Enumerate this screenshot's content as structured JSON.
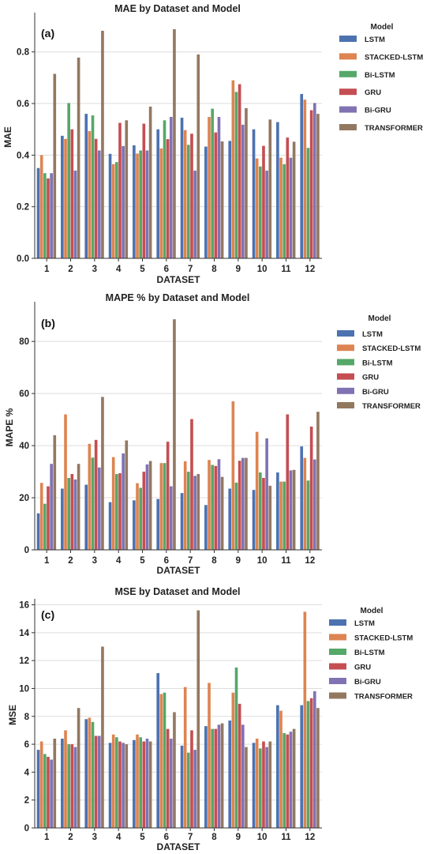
{
  "chart_data": [
    {
      "type": "bar",
      "title": "MAE by Dataset and Model",
      "panel_label": "(a)",
      "xlabel": "DATASET",
      "ylabel": "MAE",
      "ylim": [
        0,
        0.94
      ],
      "yticks": [
        0.0,
        0.2,
        0.4,
        0.6,
        0.8
      ],
      "ytick_labels": [
        "0.0",
        "0.2",
        "0.4",
        "0.6",
        "0.8"
      ],
      "grid": true,
      "legend": "right",
      "legend_title": "Model",
      "categories": [
        "1",
        "2",
        "3",
        "4",
        "5",
        "6",
        "7",
        "8",
        "9",
        "10",
        "11",
        "12"
      ],
      "series": [
        {
          "name": "LSTM",
          "color": "#4c72b0",
          "values": [
            0.35,
            0.475,
            0.56,
            0.405,
            0.438,
            0.5,
            0.545,
            0.433,
            0.455,
            0.5,
            0.528,
            0.637
          ]
        },
        {
          "name": "STACKED-LSTM",
          "color": "#dd8452",
          "values": [
            0.4,
            0.463,
            0.493,
            0.365,
            0.406,
            0.426,
            0.497,
            0.548,
            0.69,
            0.387,
            0.39,
            0.615
          ]
        },
        {
          "name": "Bi-LSTM",
          "color": "#55a868",
          "values": [
            0.33,
            0.602,
            0.554,
            0.373,
            0.418,
            0.535,
            0.44,
            0.58,
            0.645,
            0.356,
            0.365,
            0.428
          ]
        },
        {
          "name": "GRU",
          "color": "#c44e52",
          "values": [
            0.31,
            0.5,
            0.463,
            0.525,
            0.522,
            0.462,
            0.483,
            0.488,
            0.675,
            0.436,
            0.468,
            0.574
          ]
        },
        {
          "name": "Bi-GRU",
          "color": "#8172b3",
          "values": [
            0.33,
            0.34,
            0.418,
            0.435,
            0.418,
            0.548,
            0.34,
            0.548,
            0.518,
            0.34,
            0.39,
            0.602
          ]
        },
        {
          "name": "TRANSFORMER",
          "color": "#937860",
          "values": [
            0.715,
            0.778,
            0.882,
            0.535,
            0.588,
            0.888,
            0.79,
            0.453,
            0.582,
            0.538,
            0.452,
            0.56
          ]
        }
      ]
    },
    {
      "type": "bar",
      "title": "MAPE % by Dataset and Model",
      "panel_label": "(b)",
      "xlabel": "DATASET",
      "ylabel": "MAPE %",
      "ylim": [
        0,
        94
      ],
      "yticks": [
        0,
        20,
        40,
        60,
        80
      ],
      "ytick_labels": [
        "0",
        "20",
        "40",
        "60",
        "80"
      ],
      "grid": true,
      "legend": "right",
      "legend_title": "Model",
      "categories": [
        "1",
        "2",
        "3",
        "4",
        "5",
        "6",
        "7",
        "8",
        "9",
        "10",
        "11",
        "12"
      ],
      "series": [
        {
          "name": "LSTM",
          "color": "#4c72b0",
          "values": [
            14,
            23.5,
            25,
            18.3,
            19,
            19.5,
            21.8,
            17.2,
            23.5,
            23,
            29.7,
            39.7
          ]
        },
        {
          "name": "STACKED-LSTM",
          "color": "#dd8452",
          "values": [
            25.7,
            52,
            40.7,
            35.6,
            25.6,
            33.3,
            34,
            34.5,
            57,
            45.3,
            26.2,
            35.3
          ]
        },
        {
          "name": "Bi-LSTM",
          "color": "#55a868",
          "values": [
            17.7,
            27.6,
            35.4,
            29.1,
            23.8,
            33.3,
            30,
            32.6,
            25.8,
            29.7,
            26.2,
            26.6
          ]
        },
        {
          "name": "GRU",
          "color": "#c44e52",
          "values": [
            24.4,
            29.1,
            42.2,
            29.4,
            30,
            41.5,
            50.2,
            32.2,
            34.2,
            27.6,
            52,
            47.3
          ]
        },
        {
          "name": "Bi-GRU",
          "color": "#8172b3",
          "values": [
            33,
            27,
            31.6,
            37,
            32.8,
            24.4,
            28.4,
            34.8,
            35.3,
            42.8,
            30.5,
            34.7
          ]
        },
        {
          "name": "TRANSFORMER",
          "color": "#937860",
          "values": [
            44,
            33,
            58.7,
            42,
            34.1,
            88.5,
            29.1,
            28,
            35.3,
            24.6,
            30.7,
            53
          ]
        }
      ]
    },
    {
      "type": "bar",
      "title": "MSE by Dataset and Model",
      "panel_label": "(c)",
      "xlabel": "DATASET",
      "ylabel": "MSE",
      "ylim": [
        0,
        16.2
      ],
      "yticks": [
        0,
        2,
        4,
        6,
        8,
        10,
        12,
        14,
        16
      ],
      "ytick_labels": [
        "0",
        "2",
        "4",
        "6",
        "8",
        "10",
        "12",
        "14",
        "16"
      ],
      "grid": true,
      "legend": "right",
      "legend_title": "Model",
      "categories": [
        "1",
        "2",
        "3",
        "4",
        "5",
        "6",
        "7",
        "8",
        "9",
        "10",
        "11",
        "12"
      ],
      "series": [
        {
          "name": "LSTM",
          "color": "#4c72b0",
          "values": [
            5.6,
            6.4,
            7.8,
            6.1,
            6.3,
            11.1,
            5.9,
            7.3,
            7.7,
            6.1,
            8.8,
            8.8
          ]
        },
        {
          "name": "STACKED-LSTM",
          "color": "#dd8452",
          "values": [
            6.2,
            7.0,
            7.9,
            6.7,
            6.7,
            9.6,
            10.1,
            10.4,
            9.7,
            6.4,
            8.4,
            15.5
          ]
        },
        {
          "name": "Bi-LSTM",
          "color": "#55a868",
          "values": [
            5.3,
            6.0,
            7.6,
            6.5,
            6.5,
            9.7,
            5.4,
            7.1,
            11.5,
            5.7,
            6.8,
            9.1
          ]
        },
        {
          "name": "GRU",
          "color": "#c44e52",
          "values": [
            5.1,
            6.0,
            6.6,
            6.2,
            6.2,
            7.1,
            7.0,
            7.1,
            8.9,
            6.2,
            6.7,
            9.3
          ]
        },
        {
          "name": "Bi-GRU",
          "color": "#8172b3",
          "values": [
            4.9,
            5.8,
            6.6,
            6.1,
            6.4,
            6.4,
            5.6,
            7.4,
            7.4,
            5.8,
            6.9,
            9.8
          ]
        },
        {
          "name": "TRANSFORMER",
          "color": "#937860",
          "values": [
            6.4,
            8.6,
            13.0,
            6.0,
            6.2,
            8.3,
            15.6,
            7.5,
            5.8,
            6.2,
            7.1,
            8.6
          ]
        }
      ]
    }
  ]
}
